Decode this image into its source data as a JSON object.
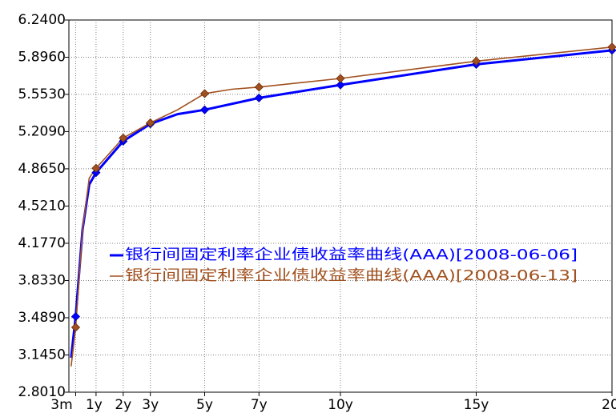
{
  "chart_data": {
    "type": "line",
    "title": "",
    "xlabel": "",
    "ylabel": "",
    "x_tick_labels": [
      "3m",
      "1y",
      "2y",
      "3y",
      "5y",
      "7y",
      "10y",
      "15y",
      "20y"
    ],
    "x_tick_values": [
      0.25,
      1,
      2,
      3,
      5,
      7,
      10,
      15,
      20
    ],
    "x_range": [
      0,
      20
    ],
    "y_tick_labels": [
      "2.8010",
      "3.1450",
      "3.4890",
      "3.8330",
      "4.1770",
      "4.5210",
      "4.8650",
      "5.2090",
      "5.5530",
      "5.8960",
      "6.2400"
    ],
    "y_tick_values": [
      2.801,
      3.145,
      3.489,
      3.833,
      4.177,
      4.521,
      4.865,
      5.209,
      5.553,
      5.896,
      6.24
    ],
    "y_range": [
      2.801,
      6.24
    ],
    "grid": true,
    "legend_position": "center-left",
    "series": [
      {
        "name": "银行间固定利率企业债收益率曲线(AAA)[2008-06-06]",
        "color": "#0000ff",
        "x": [
          0.0833,
          0.25,
          0.5,
          0.75,
          1,
          2,
          3,
          4,
          5,
          7,
          10,
          15,
          20
        ],
        "y": [
          3.12,
          3.5,
          4.3,
          4.72,
          4.83,
          5.12,
          5.28,
          5.37,
          5.41,
          5.52,
          5.64,
          5.83,
          5.96
        ]
      },
      {
        "name": "银行间固定利率企业债收益率曲线(AAA)[2008-06-13]",
        "color": "#a0501e",
        "x": [
          0.0833,
          0.25,
          0.5,
          0.75,
          1,
          2,
          3,
          4,
          5,
          6,
          7,
          10,
          15,
          20
        ],
        "y": [
          3.04,
          3.4,
          4.3,
          4.78,
          4.87,
          5.15,
          5.29,
          5.41,
          5.56,
          5.6,
          5.62,
          5.7,
          5.86,
          5.99
        ]
      }
    ],
    "markers": [
      {
        "series": 0,
        "x": [
          0.25,
          1,
          2,
          3,
          5,
          7,
          10,
          15,
          20
        ],
        "y": [
          3.5,
          4.83,
          5.12,
          5.28,
          5.41,
          5.52,
          5.64,
          5.83,
          5.96
        ]
      },
      {
        "series": 1,
        "x": [
          0.25,
          1,
          2,
          3,
          5,
          7,
          10,
          15,
          20
        ],
        "y": [
          3.4,
          4.87,
          5.15,
          5.29,
          5.56,
          5.62,
          5.7,
          5.86,
          5.99
        ]
      }
    ]
  }
}
